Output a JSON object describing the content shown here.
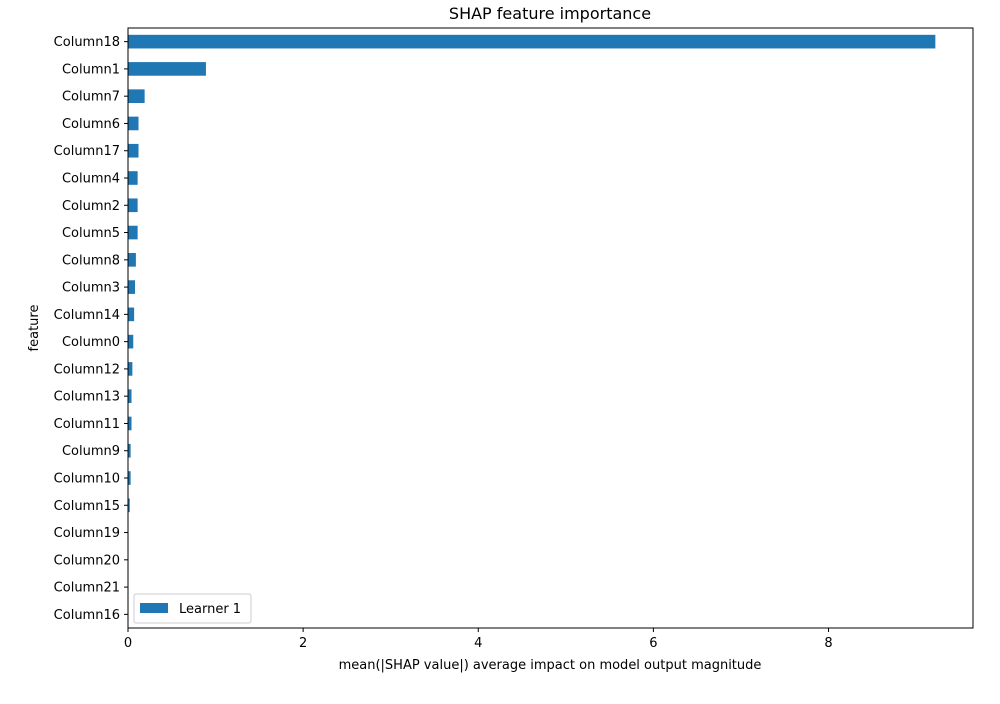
{
  "chart_data": {
    "type": "bar",
    "orientation": "horizontal",
    "title": "SHAP feature importance",
    "xlabel": "mean(|SHAP value|) average impact on model output magnitude",
    "ylabel": "feature",
    "xlim": [
      0,
      9.65
    ],
    "xticks": [
      0,
      2,
      4,
      6,
      8
    ],
    "grid": false,
    "legend_position": "bottom-left",
    "categories": [
      "Column18",
      "Column1",
      "Column7",
      "Column6",
      "Column17",
      "Column4",
      "Column2",
      "Column5",
      "Column8",
      "Column3",
      "Column14",
      "Column0",
      "Column12",
      "Column13",
      "Column11",
      "Column9",
      "Column10",
      "Column15",
      "Column19",
      "Column20",
      "Column21",
      "Column16"
    ],
    "series": [
      {
        "name": "Learner 1",
        "color": "#1f77b4",
        "values": [
          9.22,
          0.89,
          0.19,
          0.12,
          0.12,
          0.11,
          0.11,
          0.11,
          0.09,
          0.08,
          0.07,
          0.06,
          0.05,
          0.04,
          0.04,
          0.03,
          0.03,
          0.02,
          0.0,
          0.0,
          0.0,
          0.0
        ]
      }
    ]
  }
}
